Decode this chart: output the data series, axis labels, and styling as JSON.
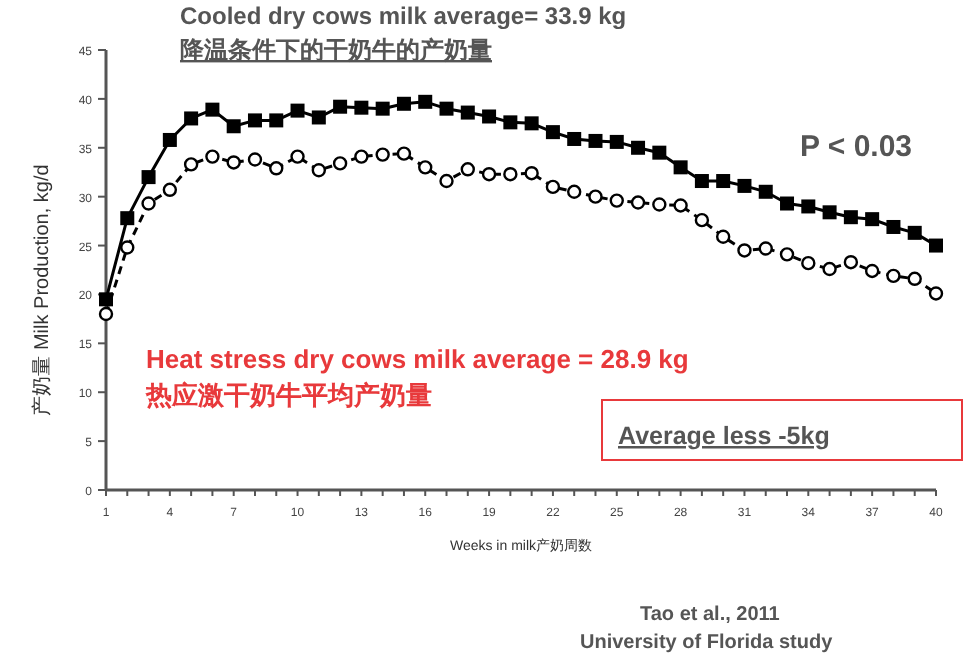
{
  "chart_data": {
    "type": "line",
    "title": "Cooled dry cows milk average= 33.9 kg",
    "subtitle": "降温条件下的干奶牛的产奶量",
    "xlabel": "Weeks in milk产奶周数",
    "ylabel": "产奶量 Milk Production, kg/d",
    "x": [
      1,
      2,
      3,
      4,
      5,
      6,
      7,
      8,
      9,
      10,
      11,
      12,
      13,
      14,
      15,
      16,
      17,
      18,
      19,
      20,
      21,
      22,
      23,
      24,
      25,
      26,
      27,
      28,
      29,
      30,
      31,
      32,
      33,
      34,
      35,
      36,
      37,
      38,
      39,
      40
    ],
    "series": [
      {
        "color": "#000000",
        "marker": "square",
        "line_style": "solid",
        "values": [
          19.5,
          27.8,
          32.0,
          35.8,
          38.0,
          38.9,
          37.2,
          37.8,
          37.8,
          38.8,
          38.1,
          39.2,
          39.1,
          39.0,
          39.5,
          39.7,
          39.0,
          38.6,
          38.2,
          37.6,
          37.5,
          36.6,
          35.9,
          35.7,
          35.6,
          35.0,
          34.5,
          33.0,
          31.6,
          31.6,
          31.1,
          30.5,
          29.3,
          29.0,
          28.4,
          27.9,
          27.7,
          26.9,
          26.3,
          25.0
        ]
      },
      {
        "color": "#000000",
        "marker": "circle",
        "line_style": "dashed",
        "values": [
          18.0,
          24.8,
          29.3,
          30.7,
          33.3,
          34.1,
          33.5,
          33.8,
          32.9,
          34.1,
          32.7,
          33.4,
          34.1,
          34.3,
          34.4,
          33.0,
          31.6,
          32.8,
          32.3,
          32.3,
          32.4,
          31.0,
          30.5,
          30.0,
          29.6,
          29.4,
          29.2,
          29.1,
          27.6,
          25.9,
          24.5,
          24.7,
          24.1,
          23.2,
          22.6,
          23.3,
          22.4,
          21.9,
          21.6,
          20.1
        ]
      }
    ],
    "xlim": [
      1,
      40
    ],
    "xticks": [
      1,
      4,
      7,
      10,
      13,
      16,
      19,
      22,
      25,
      28,
      31,
      34,
      37,
      40
    ],
    "ylim": [
      0,
      45
    ],
    "yticks": [
      0,
      5,
      10,
      15,
      20,
      25,
      30,
      35,
      40,
      45
    ],
    "annotations": [
      "P < 0.03",
      "Heat stress dry cows milk average = 28.9 kg",
      "热应激干奶牛平均产奶量",
      "Average less -5kg",
      "Tao et al., 2011",
      "University of Florida study"
    ]
  }
}
